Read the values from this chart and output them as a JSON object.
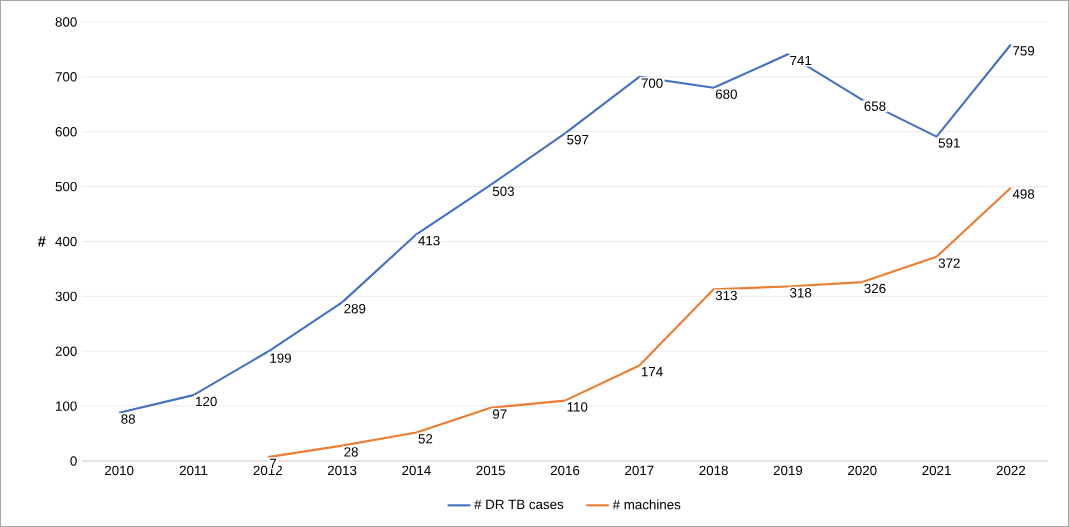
{
  "chart_data": {
    "type": "line",
    "ylabel": "#",
    "categories": [
      "2010",
      "2011",
      "2012",
      "2013",
      "2014",
      "2015",
      "2016",
      "2017",
      "2018",
      "2019",
      "2020",
      "2021",
      "2022"
    ],
    "series": [
      {
        "name": "#  DR TB cases",
        "color": "#4472c4",
        "values": [
          88,
          120,
          199,
          289,
          413,
          503,
          597,
          700,
          680,
          741,
          658,
          591,
          759
        ]
      },
      {
        "name": "# machines",
        "color": "#ed7d31",
        "values": [
          null,
          null,
          7,
          28,
          52,
          97,
          110,
          174,
          313,
          318,
          326,
          372,
          498
        ]
      }
    ],
    "ylim": [
      0,
      800
    ],
    "yticks": [
      0,
      100,
      200,
      300,
      400,
      500,
      600,
      700,
      800
    ],
    "grid": "y",
    "legend": "bottom",
    "marker": "none",
    "line_style": "solid",
    "data_labels": true
  }
}
